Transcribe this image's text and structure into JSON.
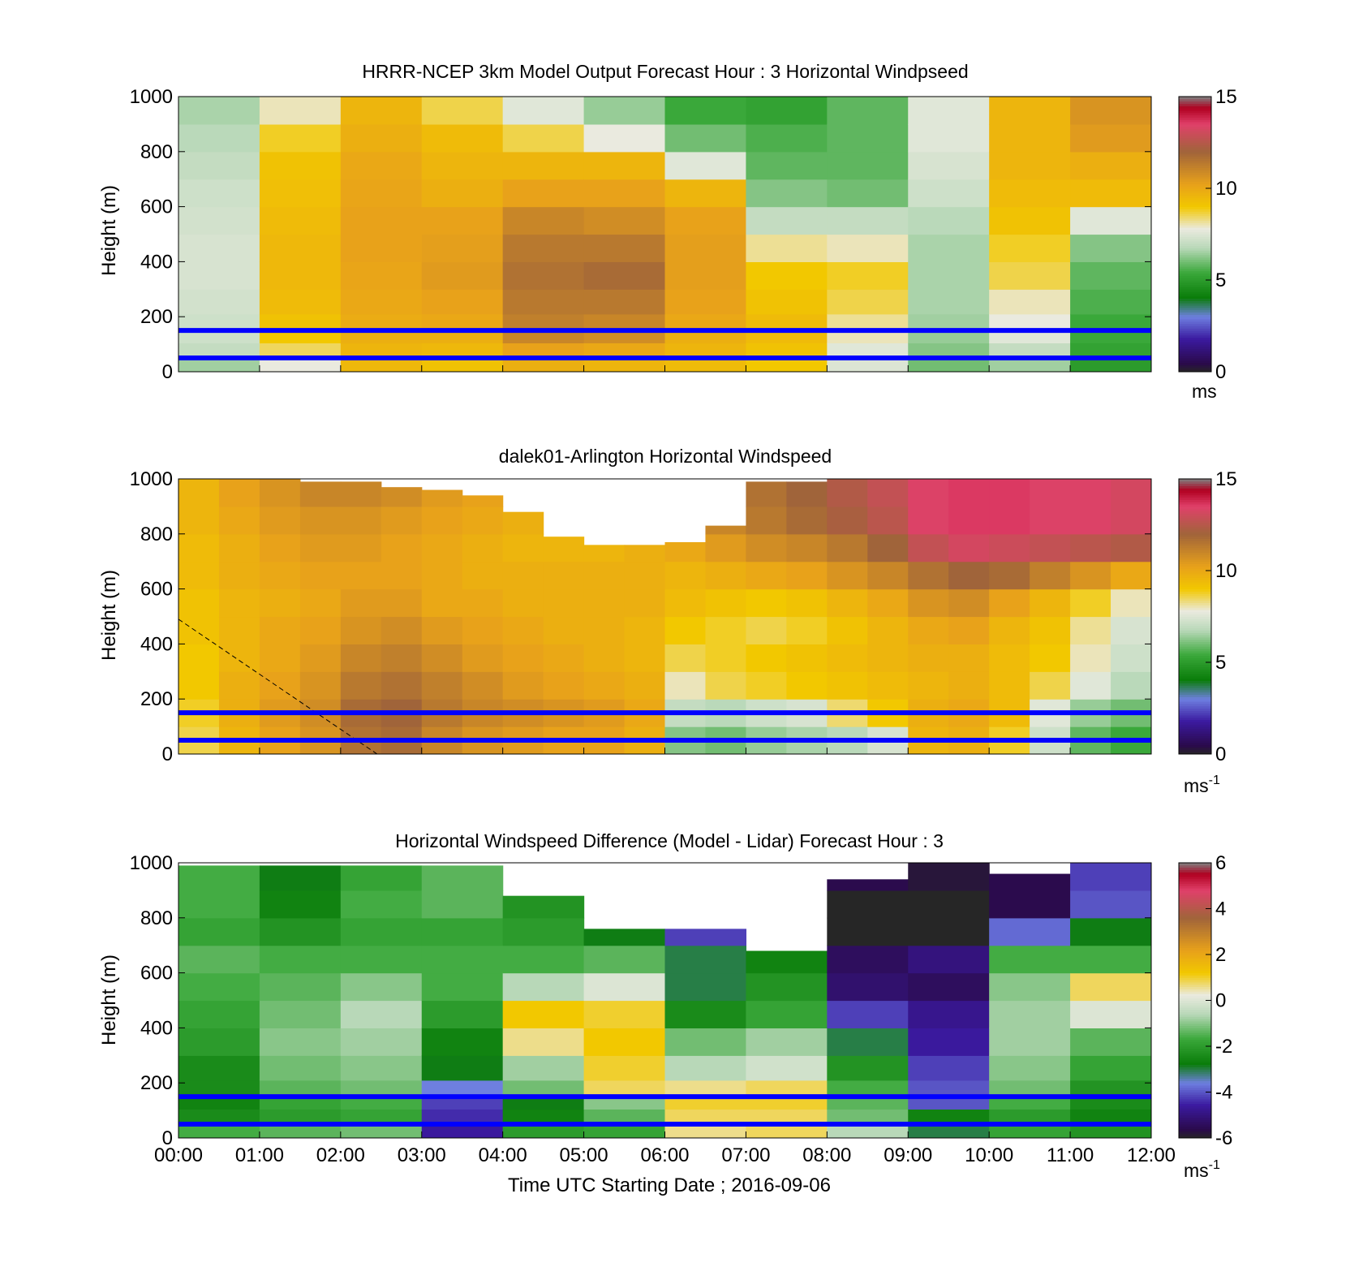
{
  "figure": {
    "xlabel": "Time UTC  Starting Date ; 2016-09-06",
    "x_ticks": [
      "00:00",
      "01:00",
      "02:00",
      "03:00",
      "04:00",
      "05:00",
      "06:00",
      "07:00",
      "08:00",
      "09:00",
      "10:00",
      "11:00",
      "12:00"
    ]
  },
  "colors": {
    "overlay_line": "#0000ff",
    "colormap": [
      "#262626",
      "#2a0a4a",
      "#3b1aa0",
      "#6e7fe0",
      "#0a7d0a",
      "#3aa83a",
      "#b8d8b8",
      "#eaeadf",
      "#f2c800",
      "#e8a21a",
      "#a0643a",
      "#e0406a",
      "#b00020",
      "#808080"
    ]
  },
  "chart_data": [
    {
      "type": "heatmap",
      "title": "HRRR-NCEP 3km Model Output   Forecast Hour : 3 Horizontal Windpseed",
      "ylabel": "Height (m)",
      "y_ticks": [
        "0",
        "200",
        "400",
        "600",
        "800",
        "1000"
      ],
      "ylim": [
        0,
        1000
      ],
      "xlim_hours": [
        0,
        12
      ],
      "colorbar": {
        "ticks": [
          "0",
          "5",
          "10",
          "15"
        ],
        "unit": "ms",
        "unit_sup": "",
        "range": [
          0,
          15
        ]
      },
      "overlay_lines_m": [
        50,
        150
      ],
      "column_hours": [
        0,
        1,
        2,
        3,
        4,
        5,
        6,
        7,
        8,
        9,
        10,
        11
      ],
      "height_levels_m": [
        40,
        80,
        130,
        170,
        250,
        350,
        450,
        550,
        650,
        750,
        850,
        950
      ],
      "values": [
        [
          6.5,
          7.8,
          9.5,
          9.2,
          9.8,
          9.6,
          9.4,
          9.0,
          7.5,
          6.0,
          6.5,
          5.0
        ],
        [
          7.0,
          8.5,
          9.6,
          9.5,
          10.2,
          10.0,
          9.6,
          9.2,
          7.6,
          6.2,
          7.0,
          5.2
        ],
        [
          7.2,
          9.0,
          9.8,
          9.8,
          11.0,
          10.8,
          9.8,
          9.4,
          8.0,
          6.4,
          7.6,
          5.4
        ],
        [
          7.2,
          9.2,
          9.9,
          10.0,
          11.2,
          11.0,
          10.0,
          9.4,
          8.2,
          6.5,
          7.8,
          5.4
        ],
        [
          7.3,
          9.4,
          10.0,
          10.2,
          11.4,
          11.4,
          10.2,
          9.2,
          8.6,
          6.6,
          8.0,
          5.6
        ],
        [
          7.4,
          9.5,
          10.1,
          10.4,
          11.6,
          11.8,
          10.3,
          9.0,
          8.8,
          6.6,
          8.6,
          5.8
        ],
        [
          7.4,
          9.5,
          10.2,
          10.3,
          11.4,
          11.4,
          10.3,
          8.2,
          8.0,
          6.6,
          8.8,
          6.2
        ],
        [
          7.3,
          9.4,
          10.2,
          10.2,
          11.0,
          10.8,
          10.2,
          7.0,
          7.0,
          6.8,
          9.2,
          7.6
        ],
        [
          7.2,
          9.3,
          10.1,
          9.8,
          10.2,
          10.2,
          9.6,
          6.2,
          6.0,
          7.2,
          9.4,
          9.4
        ],
        [
          7.0,
          9.2,
          10.0,
          9.6,
          9.6,
          9.6,
          7.6,
          5.8,
          5.8,
          7.4,
          9.6,
          9.8
        ],
        [
          6.8,
          8.8,
          9.8,
          9.4,
          8.6,
          7.8,
          6.0,
          5.6,
          5.8,
          7.6,
          9.6,
          10.4
        ],
        [
          6.6,
          8.0,
          9.6,
          8.6,
          7.6,
          6.4,
          5.4,
          5.2,
          5.8,
          7.6,
          9.6,
          10.6
        ]
      ]
    },
    {
      "type": "heatmap",
      "title": "dalek01-Arlington  Horizontal Windspeed",
      "ylabel": "Height (m)",
      "y_ticks": [
        "0",
        "200",
        "400",
        "600",
        "800",
        "1000"
      ],
      "ylim": [
        0,
        1000
      ],
      "xlim_hours": [
        0,
        12
      ],
      "colorbar": {
        "ticks": [
          "0",
          "5",
          "10",
          "15"
        ],
        "unit": "ms",
        "unit_sup": "-1",
        "range": [
          0,
          15
        ]
      },
      "overlay_lines_m": [
        50,
        150
      ],
      "dashed_line": {
        "x_hours": [
          0.0,
          2.45
        ],
        "y_m": [
          490,
          0
        ]
      },
      "column_hours": [
        0.0,
        0.5,
        1.0,
        1.5,
        2.0,
        2.5,
        3.0,
        3.5,
        4.0,
        4.5,
        5.0,
        5.5,
        6.0,
        6.5,
        7.0,
        7.5,
        8.0,
        8.5,
        9.0,
        9.5,
        10.0,
        10.5,
        11.0,
        11.5
      ],
      "top_height_m": [
        1000,
        1000,
        1000,
        990,
        990,
        970,
        960,
        940,
        880,
        790,
        760,
        760,
        770,
        830,
        990,
        990,
        1000,
        1000,
        1000,
        1000,
        1000,
        1000,
        1000,
        1000
      ],
      "height_levels_m": [
        50,
        150,
        250,
        350,
        450,
        550,
        650,
        750,
        850,
        950
      ],
      "values": [
        [
          8.6,
          9.6,
          10.2,
          10.6,
          11.6,
          11.8,
          11.0,
          10.6,
          10.4,
          10.2,
          10.2,
          9.8,
          6.2,
          6.0,
          6.4,
          6.6,
          6.8,
          7.4,
          9.6,
          9.8,
          8.8,
          7.2,
          5.8,
          5.4
        ],
        [
          8.8,
          9.8,
          10.4,
          10.8,
          11.8,
          12.0,
          11.4,
          11.0,
          10.8,
          10.6,
          10.4,
          10.0,
          7.0,
          6.8,
          7.2,
          7.4,
          8.4,
          9.0,
          9.8,
          10.0,
          9.4,
          7.6,
          6.4,
          6.0
        ],
        [
          9.0,
          9.8,
          10.2,
          10.6,
          11.4,
          11.6,
          11.2,
          10.8,
          10.4,
          10.2,
          10.0,
          9.8,
          8.0,
          8.6,
          8.8,
          9.0,
          9.2,
          9.4,
          9.6,
          9.8,
          9.4,
          8.6,
          7.6,
          6.8
        ],
        [
          9.0,
          9.6,
          10.0,
          10.4,
          11.0,
          11.2,
          10.8,
          10.4,
          10.2,
          10.0,
          9.8,
          9.6,
          8.6,
          8.8,
          9.0,
          9.2,
          9.4,
          9.6,
          9.8,
          9.8,
          9.4,
          9.0,
          8.0,
          7.2
        ],
        [
          9.2,
          9.6,
          10.0,
          10.2,
          10.6,
          10.8,
          10.4,
          10.2,
          10.0,
          9.8,
          9.8,
          9.6,
          9.0,
          8.8,
          8.6,
          8.8,
          9.2,
          9.6,
          10.0,
          10.2,
          9.6,
          9.2,
          8.2,
          7.4
        ],
        [
          9.2,
          9.6,
          9.8,
          10.0,
          10.4,
          10.4,
          10.0,
          10.0,
          9.8,
          9.8,
          9.8,
          9.8,
          9.4,
          9.2,
          9.0,
          9.2,
          9.6,
          10.0,
          10.6,
          10.8,
          10.2,
          9.6,
          8.8,
          8.0
        ],
        [
          9.4,
          9.8,
          10.0,
          10.2,
          10.2,
          10.2,
          10.0,
          9.8,
          9.8,
          9.8,
          9.8,
          9.8,
          9.6,
          9.8,
          10.0,
          10.2,
          10.6,
          11.0,
          11.6,
          12.0,
          11.8,
          11.2,
          10.6,
          10.0
        ],
        [
          9.4,
          9.8,
          10.2,
          10.4,
          10.4,
          10.2,
          10.0,
          9.8,
          9.6,
          9.6,
          9.6,
          9.8,
          10.0,
          10.4,
          10.8,
          11.0,
          11.4,
          12.0,
          12.8,
          13.2,
          13.0,
          12.8,
          12.6,
          12.4
        ],
        [
          9.6,
          10.0,
          10.4,
          10.6,
          10.6,
          10.4,
          10.2,
          10.0,
          9.8,
          9.8,
          10.0,
          10.2,
          10.6,
          11.0,
          11.4,
          11.8,
          12.2,
          12.6,
          13.4,
          13.6,
          13.6,
          13.4,
          13.4,
          13.2
        ],
        [
          9.6,
          10.2,
          10.6,
          11.0,
          11.0,
          10.8,
          10.4,
          10.2,
          10.0,
          10.0,
          10.2,
          10.4,
          10.8,
          11.2,
          11.6,
          12.0,
          12.4,
          12.8,
          13.4,
          13.6,
          13.6,
          13.4,
          13.4,
          13.2
        ]
      ]
    },
    {
      "type": "heatmap",
      "title": "Horizontal Windspeed Difference (Model - Lidar) Forecast Hour : 3",
      "ylabel": "Height (m)",
      "y_ticks": [
        "0",
        "200",
        "400",
        "600",
        "800",
        "1000"
      ],
      "ylim": [
        0,
        1000
      ],
      "xlim_hours": [
        0,
        12
      ],
      "colorbar": {
        "ticks": [
          "-6",
          "-4",
          "-2",
          "0",
          "2",
          "4",
          "6"
        ],
        "unit": "ms",
        "unit_sup": "-1",
        "range": [
          -6,
          6
        ]
      },
      "overlay_lines_m": [
        50,
        150
      ],
      "column_hours": [
        0,
        1,
        2,
        3,
        4,
        5,
        6,
        7,
        8,
        9,
        10,
        11
      ],
      "top_height_m": [
        990,
        990,
        990,
        990,
        880,
        760,
        760,
        680,
        940,
        1000,
        960,
        1000
      ],
      "height_levels_m": [
        40,
        80,
        130,
        170,
        250,
        350,
        450,
        550,
        650,
        750,
        850,
        950
      ],
      "values": [
        [
          -1.6,
          -1.4,
          -1.2,
          -4.6,
          -2.0,
          -1.8,
          0.6,
          0.8,
          -0.6,
          -3.0,
          -1.8,
          -2.2
        ],
        [
          -2.4,
          -2.0,
          -1.8,
          -4.4,
          -2.6,
          -1.4,
          0.8,
          0.8,
          -1.2,
          -2.6,
          -2.0,
          -2.6
        ],
        [
          -2.6,
          -1.8,
          -1.6,
          -4.2,
          -2.8,
          -1.0,
          1.0,
          1.0,
          -1.4,
          -4.0,
          -1.6,
          -2.4
        ],
        [
          -2.4,
          -1.4,
          -1.2,
          -3.6,
          -1.2,
          0.8,
          0.6,
          0.8,
          -1.6,
          -4.0,
          -1.2,
          -2.2
        ],
        [
          -2.4,
          -1.2,
          -1.0,
          -2.8,
          -0.8,
          1.0,
          -0.6,
          -0.2,
          -2.2,
          -4.2,
          -1.0,
          -1.8
        ],
        [
          -2.0,
          -1.0,
          -0.8,
          -2.6,
          0.6,
          1.2,
          -1.2,
          -0.8,
          -3.0,
          -4.6,
          -0.8,
          -1.4
        ],
        [
          -1.8,
          -1.2,
          -0.6,
          -2.0,
          1.2,
          1.0,
          -2.4,
          -1.8,
          -4.2,
          -4.8,
          -0.8,
          0.0
        ],
        [
          -1.6,
          -1.4,
          -1.0,
          -1.6,
          -0.6,
          0.0,
          -3.0,
          -2.2,
          -5.2,
          -5.4,
          -1.0,
          0.8
        ],
        [
          -1.4,
          -1.6,
          -1.6,
          -1.6,
          -1.6,
          -1.4,
          -3.0,
          -2.6,
          -5.4,
          -5.0,
          -1.6,
          -1.6
        ],
        [
          -1.8,
          -2.2,
          -1.8,
          -1.8,
          -2.0,
          -2.8,
          -4.2,
          null,
          -6.2,
          -6.2,
          -3.8,
          -2.8
        ],
        [
          -1.6,
          -2.6,
          -1.6,
          -1.4,
          -2.2,
          null,
          null,
          null,
          -6.2,
          -6.2,
          -5.6,
          -4.0
        ],
        [
          -1.6,
          -2.8,
          -1.8,
          -1.4,
          null,
          null,
          null,
          null,
          -5.6,
          -5.8,
          -5.6,
          -4.2
        ]
      ]
    }
  ]
}
